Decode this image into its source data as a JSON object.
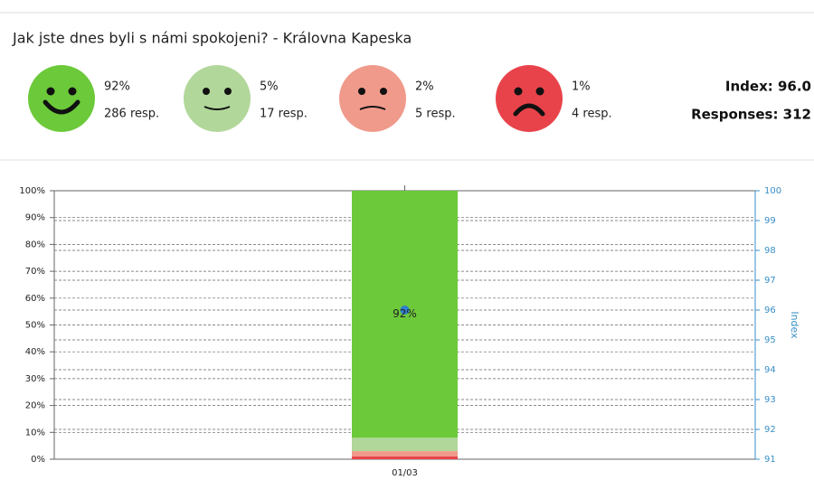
{
  "header": {
    "title": "Jak jste dnes byli s námi spokojeni? - Královna Kapeska",
    "index": "Index: 96.0",
    "responses": "Responses: 312"
  },
  "summary": [
    {
      "percent": "92%",
      "responses": "286 resp."
    },
    {
      "percent": "5%",
      "responses": "17 resp."
    },
    {
      "percent": "2%",
      "responses": "5 resp."
    },
    {
      "percent": "1%",
      "responses": "4 resp."
    }
  ],
  "chart_data": {
    "type": "bar",
    "stacked": true,
    "categories": [
      "01/03"
    ],
    "series": [
      {
        "color": "#e8434a",
        "values": [
          1
        ]
      },
      {
        "color": "#f09a8b",
        "values": [
          2
        ]
      },
      {
        "color": "#b1d79a",
        "values": [
          5
        ]
      },
      {
        "color": "#6cc93a",
        "values": [
          92
        ],
        "value_labels": [
          "92%"
        ]
      },
      {
        "type": "line",
        "axis": "y2",
        "color": "#2f7fd0",
        "values": [
          96
        ]
      }
    ],
    "ylim": [
      0,
      100
    ],
    "yticks": [
      {
        "value": 0,
        "label": "0%"
      },
      {
        "value": 10,
        "label": "10%"
      },
      {
        "value": 20,
        "label": "20%"
      },
      {
        "value": 30,
        "label": "30%"
      },
      {
        "value": 40,
        "label": "40%"
      },
      {
        "value": 50,
        "label": "50%"
      },
      {
        "value": 60,
        "label": "60%"
      },
      {
        "value": 70,
        "label": "70%"
      },
      {
        "value": 80,
        "label": "80%"
      },
      {
        "value": 90,
        "label": "90%"
      },
      {
        "value": 100,
        "label": "100%"
      }
    ],
    "y2lim": [
      91,
      100
    ],
    "y2ticks": [
      91,
      92,
      93,
      94,
      95,
      96,
      97,
      98,
      99,
      100
    ],
    "y2label": "Index",
    "grid": true
  }
}
